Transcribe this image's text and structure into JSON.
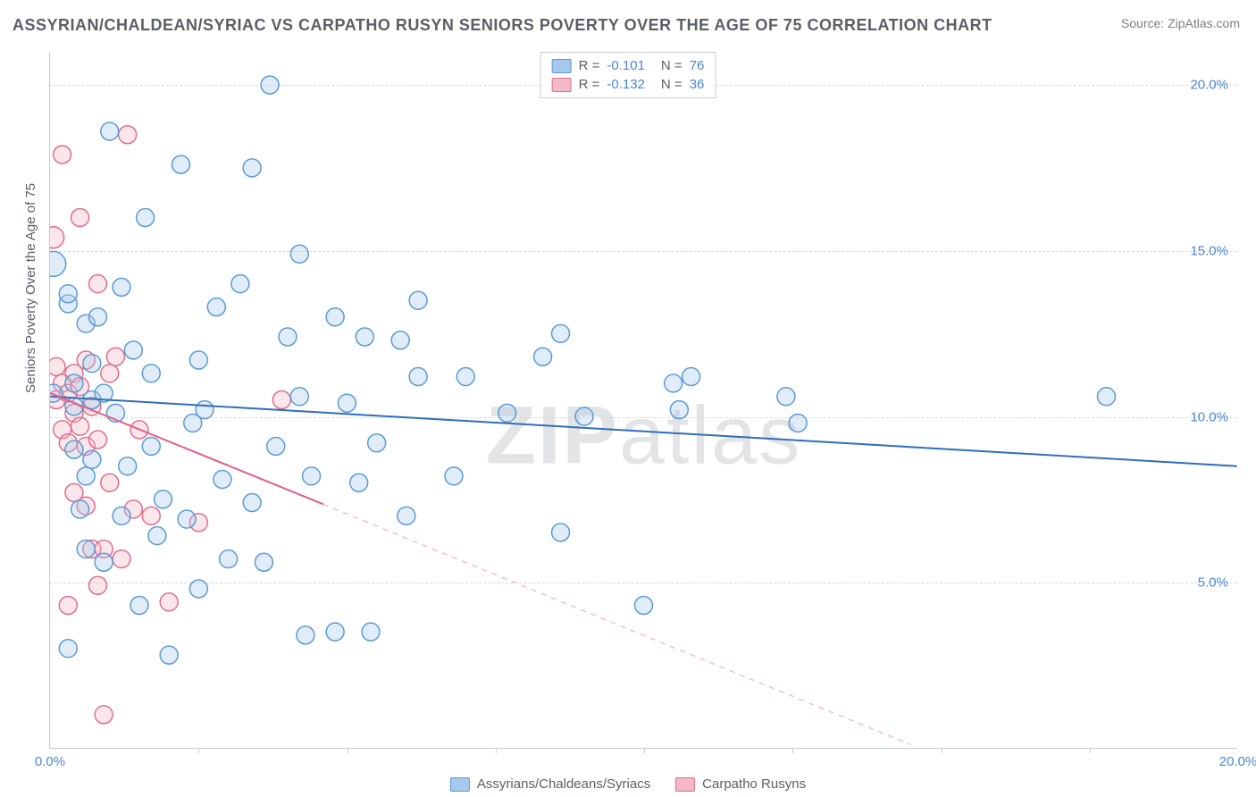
{
  "title": "ASSYRIAN/CHALDEAN/SYRIAC VS CARPATHO RUSYN SENIORS POVERTY OVER THE AGE OF 75 CORRELATION CHART",
  "source": "Source: ZipAtlas.com",
  "watermark_strong": "ZIP",
  "watermark_light": "atlas",
  "y_axis_label": "Seniors Poverty Over the Age of 75",
  "chart": {
    "type": "scatter",
    "background_color": "#ffffff",
    "grid_color": "#d7dadd",
    "axis_color": "#c9ccd0",
    "xlim": [
      0,
      20
    ],
    "ylim": [
      0,
      21
    ],
    "yticks": [
      {
        "v": 5,
        "label": "5.0%"
      },
      {
        "v": 10,
        "label": "10.0%"
      },
      {
        "v": 15,
        "label": "15.0%"
      },
      {
        "v": 20,
        "label": "20.0%"
      }
    ],
    "xticks_minor": [
      2.5,
      5,
      7.5,
      10,
      12.5,
      15,
      17.5
    ],
    "xtick_labels": [
      {
        "v": 0,
        "label": "0.0%"
      },
      {
        "v": 20,
        "label": "20.0%"
      }
    ],
    "series": [
      {
        "name": "Assyrians/Chaldeans/Syriacs",
        "fill": "#a6c8ec",
        "stroke": "#5b9bd5",
        "R": "-0.101",
        "N": "76",
        "marker_radius": 10,
        "trend": {
          "x1": 0,
          "y1": 10.6,
          "x2": 20,
          "y2": 8.5,
          "stroke": "#2f6fb7",
          "width": 2
        },
        "points": [
          {
            "x": 0.05,
            "y": 14.6,
            "r": 14
          },
          {
            "x": 0.05,
            "y": 10.7,
            "r": 10
          },
          {
            "x": 0.3,
            "y": 13.4,
            "r": 10
          },
          {
            "x": 0.3,
            "y": 13.7,
            "r": 10
          },
          {
            "x": 0.3,
            "y": 3.0,
            "r": 10
          },
          {
            "x": 0.4,
            "y": 10.3,
            "r": 10
          },
          {
            "x": 0.4,
            "y": 11.0,
            "r": 10
          },
          {
            "x": 0.4,
            "y": 9.0,
            "r": 10
          },
          {
            "x": 0.5,
            "y": 7.2,
            "r": 10
          },
          {
            "x": 0.6,
            "y": 8.2,
            "r": 10
          },
          {
            "x": 0.6,
            "y": 6.0,
            "r": 10
          },
          {
            "x": 0.6,
            "y": 12.8,
            "r": 10
          },
          {
            "x": 0.7,
            "y": 11.6,
            "r": 10
          },
          {
            "x": 0.7,
            "y": 10.5,
            "r": 10
          },
          {
            "x": 0.7,
            "y": 8.7,
            "r": 10
          },
          {
            "x": 0.8,
            "y": 13.0,
            "r": 10
          },
          {
            "x": 0.9,
            "y": 10.7,
            "r": 10
          },
          {
            "x": 0.9,
            "y": 5.6,
            "r": 10
          },
          {
            "x": 1.0,
            "y": 18.6,
            "r": 10
          },
          {
            "x": 1.1,
            "y": 10.1,
            "r": 10
          },
          {
            "x": 1.2,
            "y": 7.0,
            "r": 10
          },
          {
            "x": 1.2,
            "y": 13.9,
            "r": 10
          },
          {
            "x": 1.3,
            "y": 8.5,
            "r": 10
          },
          {
            "x": 1.4,
            "y": 12.0,
            "r": 10
          },
          {
            "x": 1.5,
            "y": 4.3,
            "r": 10
          },
          {
            "x": 1.6,
            "y": 16.0,
            "r": 10
          },
          {
            "x": 1.7,
            "y": 9.1,
            "r": 10
          },
          {
            "x": 1.7,
            "y": 11.3,
            "r": 10
          },
          {
            "x": 1.8,
            "y": 6.4,
            "r": 10
          },
          {
            "x": 1.9,
            "y": 7.5,
            "r": 10
          },
          {
            "x": 2.0,
            "y": 2.8,
            "r": 10
          },
          {
            "x": 2.2,
            "y": 17.6,
            "r": 10
          },
          {
            "x": 2.3,
            "y": 6.9,
            "r": 10
          },
          {
            "x": 2.4,
            "y": 9.8,
            "r": 10
          },
          {
            "x": 2.5,
            "y": 11.7,
            "r": 10
          },
          {
            "x": 2.5,
            "y": 4.8,
            "r": 10
          },
          {
            "x": 2.6,
            "y": 10.2,
            "r": 10
          },
          {
            "x": 2.8,
            "y": 13.3,
            "r": 10
          },
          {
            "x": 2.9,
            "y": 8.1,
            "r": 10
          },
          {
            "x": 3.0,
            "y": 5.7,
            "r": 10
          },
          {
            "x": 3.2,
            "y": 14.0,
            "r": 10
          },
          {
            "x": 3.4,
            "y": 7.4,
            "r": 10
          },
          {
            "x": 3.4,
            "y": 17.5,
            "r": 10
          },
          {
            "x": 3.6,
            "y": 5.6,
            "r": 10
          },
          {
            "x": 3.7,
            "y": 20.0,
            "r": 10
          },
          {
            "x": 3.8,
            "y": 9.1,
            "r": 10
          },
          {
            "x": 4.0,
            "y": 12.4,
            "r": 10
          },
          {
            "x": 4.2,
            "y": 14.9,
            "r": 10
          },
          {
            "x": 4.2,
            "y": 10.6,
            "r": 10
          },
          {
            "x": 4.3,
            "y": 3.4,
            "r": 10
          },
          {
            "x": 4.4,
            "y": 8.2,
            "r": 10
          },
          {
            "x": 4.8,
            "y": 13.0,
            "r": 10
          },
          {
            "x": 4.8,
            "y": 3.5,
            "r": 10
          },
          {
            "x": 5.0,
            "y": 10.4,
            "r": 10
          },
          {
            "x": 5.2,
            "y": 8.0,
            "r": 10
          },
          {
            "x": 5.3,
            "y": 12.4,
            "r": 10
          },
          {
            "x": 5.4,
            "y": 3.5,
            "r": 10
          },
          {
            "x": 5.5,
            "y": 9.2,
            "r": 10
          },
          {
            "x": 5.9,
            "y": 12.3,
            "r": 10
          },
          {
            "x": 6.0,
            "y": 7.0,
            "r": 10
          },
          {
            "x": 6.2,
            "y": 11.2,
            "r": 10
          },
          {
            "x": 6.2,
            "y": 13.5,
            "r": 10
          },
          {
            "x": 6.8,
            "y": 8.2,
            "r": 10
          },
          {
            "x": 7.0,
            "y": 11.2,
            "r": 10
          },
          {
            "x": 7.7,
            "y": 10.1,
            "r": 10
          },
          {
            "x": 8.3,
            "y": 11.8,
            "r": 10
          },
          {
            "x": 8.6,
            "y": 6.5,
            "r": 10
          },
          {
            "x": 8.6,
            "y": 12.5,
            "r": 10
          },
          {
            "x": 9.0,
            "y": 10.0,
            "r": 10
          },
          {
            "x": 10.0,
            "y": 4.3,
            "r": 10
          },
          {
            "x": 10.5,
            "y": 11.0,
            "r": 10
          },
          {
            "x": 10.6,
            "y": 10.2,
            "r": 10
          },
          {
            "x": 10.8,
            "y": 11.2,
            "r": 10
          },
          {
            "x": 12.4,
            "y": 10.6,
            "r": 10
          },
          {
            "x": 12.6,
            "y": 9.8,
            "r": 10
          },
          {
            "x": 17.8,
            "y": 10.6,
            "r": 10
          }
        ]
      },
      {
        "name": "Carpatho Rusyns",
        "fill": "#f4b8c6",
        "stroke": "#e16e8c",
        "R": "-0.132",
        "N": "36",
        "marker_radius": 10,
        "trend": {
          "x1": 0,
          "y1": 10.7,
          "x2": 4.6,
          "y2": 7.35,
          "stroke": "#e16085",
          "width": 2
        },
        "trend_dash": {
          "x1": 4.6,
          "y1": 7.35,
          "x2": 14.5,
          "y2": 0.1,
          "stroke": "#f3bcc8",
          "width": 1.5
        },
        "points": [
          {
            "x": 0.05,
            "y": 15.4,
            "r": 12
          },
          {
            "x": 0.1,
            "y": 11.5,
            "r": 10
          },
          {
            "x": 0.1,
            "y": 10.5,
            "r": 10
          },
          {
            "x": 0.2,
            "y": 17.9,
            "r": 10
          },
          {
            "x": 0.2,
            "y": 11.0,
            "r": 10
          },
          {
            "x": 0.2,
            "y": 9.6,
            "r": 10
          },
          {
            "x": 0.3,
            "y": 10.7,
            "r": 10
          },
          {
            "x": 0.3,
            "y": 9.2,
            "r": 10
          },
          {
            "x": 0.3,
            "y": 4.3,
            "r": 10
          },
          {
            "x": 0.4,
            "y": 10.1,
            "r": 10
          },
          {
            "x": 0.4,
            "y": 7.7,
            "r": 10
          },
          {
            "x": 0.4,
            "y": 11.3,
            "r": 10
          },
          {
            "x": 0.5,
            "y": 16.0,
            "r": 10
          },
          {
            "x": 0.5,
            "y": 10.9,
            "r": 10
          },
          {
            "x": 0.5,
            "y": 9.7,
            "r": 10
          },
          {
            "x": 0.6,
            "y": 9.1,
            "r": 10
          },
          {
            "x": 0.6,
            "y": 7.3,
            "r": 10
          },
          {
            "x": 0.6,
            "y": 11.7,
            "r": 10
          },
          {
            "x": 0.7,
            "y": 6.0,
            "r": 10
          },
          {
            "x": 0.7,
            "y": 10.3,
            "r": 10
          },
          {
            "x": 0.8,
            "y": 14.0,
            "r": 10
          },
          {
            "x": 0.8,
            "y": 4.9,
            "r": 10
          },
          {
            "x": 0.8,
            "y": 9.3,
            "r": 10
          },
          {
            "x": 0.9,
            "y": 6.0,
            "r": 10
          },
          {
            "x": 0.9,
            "y": 1.0,
            "r": 10
          },
          {
            "x": 1.0,
            "y": 11.3,
            "r": 10
          },
          {
            "x": 1.0,
            "y": 8.0,
            "r": 10
          },
          {
            "x": 1.1,
            "y": 11.8,
            "r": 10
          },
          {
            "x": 1.2,
            "y": 5.7,
            "r": 10
          },
          {
            "x": 1.3,
            "y": 18.5,
            "r": 10
          },
          {
            "x": 1.4,
            "y": 7.2,
            "r": 10
          },
          {
            "x": 1.5,
            "y": 9.6,
            "r": 10
          },
          {
            "x": 1.7,
            "y": 7.0,
            "r": 10
          },
          {
            "x": 2.0,
            "y": 4.4,
            "r": 10
          },
          {
            "x": 2.5,
            "y": 6.8,
            "r": 10
          },
          {
            "x": 3.9,
            "y": 10.5,
            "r": 10
          }
        ]
      }
    ]
  },
  "legend_bottom": [
    {
      "name": "Assyrians/Chaldeans/Syriacs",
      "fill": "#a6c8ec",
      "stroke": "#5b9bd5"
    },
    {
      "name": "Carpatho Rusyns",
      "fill": "#f4b8c6",
      "stroke": "#e16e8c"
    }
  ]
}
